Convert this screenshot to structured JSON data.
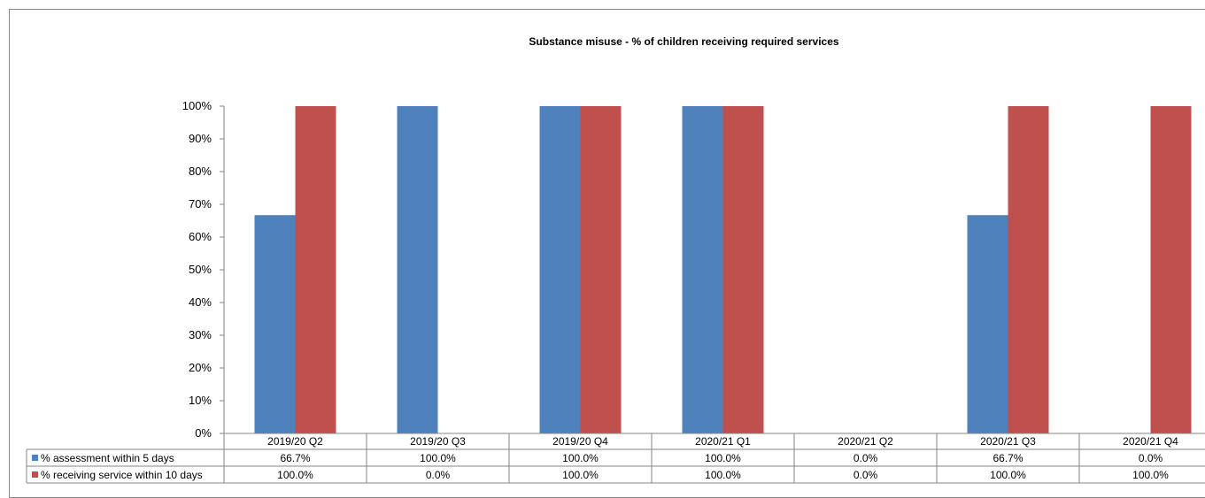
{
  "chart_data": {
    "type": "bar",
    "title": "Substance misuse - % of children receiving required services",
    "categories": [
      "2019/20 Q2",
      "2019/20 Q3",
      "2019/20 Q4",
      "2020/21 Q1",
      "2020/21 Q2",
      "2020/21 Q3",
      "2020/21 Q4"
    ],
    "series": [
      {
        "name": "% assessment within 5 days",
        "color": "#4f81bd",
        "values": [
          66.7,
          100,
          100,
          100,
          0,
          66.7,
          0
        ],
        "labels": [
          "66.7%",
          "100.0%",
          "100.0%",
          "100.0%",
          "0.0%",
          "66.7%",
          "0.0%"
        ]
      },
      {
        "name": "% receiving service within 10 days",
        "color": "#c0504d",
        "values": [
          100,
          0,
          100,
          100,
          0,
          100,
          100
        ],
        "labels": [
          "100.0%",
          "0.0%",
          "100.0%",
          "100.0%",
          "0.0%",
          "100.0%",
          "100.0%"
        ]
      }
    ],
    "yticks": [
      "0%",
      "10%",
      "20%",
      "30%",
      "40%",
      "50%",
      "60%",
      "70%",
      "80%",
      "90%",
      "100%"
    ],
    "ylim": [
      0,
      100
    ],
    "grid": false,
    "legend": "data table"
  }
}
